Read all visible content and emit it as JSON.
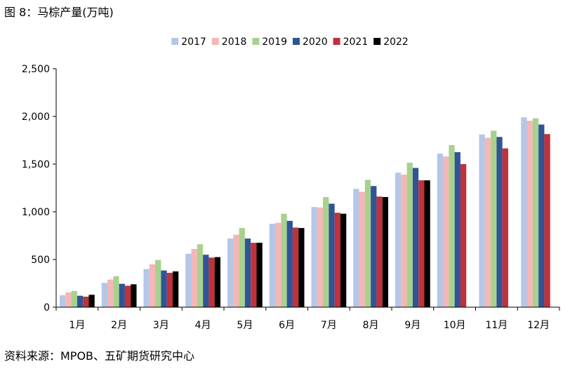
{
  "figure": {
    "title": "图 8：马棕产量(万吨)",
    "source": "资料来源：MPOB、五矿期货研究中心"
  },
  "chart_data": {
    "type": "bar",
    "title": "马棕产量(万吨)",
    "xlabel": "",
    "ylabel": "",
    "ylim": [
      0,
      2500
    ],
    "yticks": [
      0,
      500,
      1000,
      1500,
      2000,
      2500
    ],
    "ytick_labels": [
      "0",
      "500",
      "1,000",
      "1,500",
      "2,000",
      "2,500"
    ],
    "grid": false,
    "legend_position": "top",
    "categories": [
      "1月",
      "2月",
      "3月",
      "4月",
      "5月",
      "6月",
      "7月",
      "8月",
      "9月",
      "10月",
      "11月",
      "12月"
    ],
    "series": [
      {
        "name": "2017",
        "color": "#b4c7e7",
        "values": [
          125,
          255,
          400,
          560,
          720,
          875,
          1050,
          1240,
          1410,
          1610,
          1810,
          1990
        ]
      },
      {
        "name": "2018",
        "color": "#f4b6b6",
        "values": [
          155,
          290,
          450,
          610,
          760,
          885,
          1045,
          1210,
          1390,
          1580,
          1775,
          1955
        ]
      },
      {
        "name": "2019",
        "color": "#a9d18e",
        "values": [
          170,
          325,
          495,
          660,
          830,
          980,
          1155,
          1335,
          1515,
          1700,
          1850,
          1980
        ]
      },
      {
        "name": "2020",
        "color": "#2f5597",
        "values": [
          120,
          245,
          385,
          550,
          720,
          905,
          1085,
          1270,
          1460,
          1625,
          1785,
          1915
        ]
      },
      {
        "name": "2021",
        "color": "#c0313a",
        "values": [
          110,
          225,
          360,
          520,
          675,
          835,
          990,
          1160,
          1330,
          1500,
          1665,
          1815
        ]
      },
      {
        "name": "2022",
        "color": "#000000",
        "values": [
          130,
          240,
          375,
          525,
          675,
          830,
          980,
          1155,
          1330,
          null,
          null,
          null
        ]
      }
    ]
  }
}
